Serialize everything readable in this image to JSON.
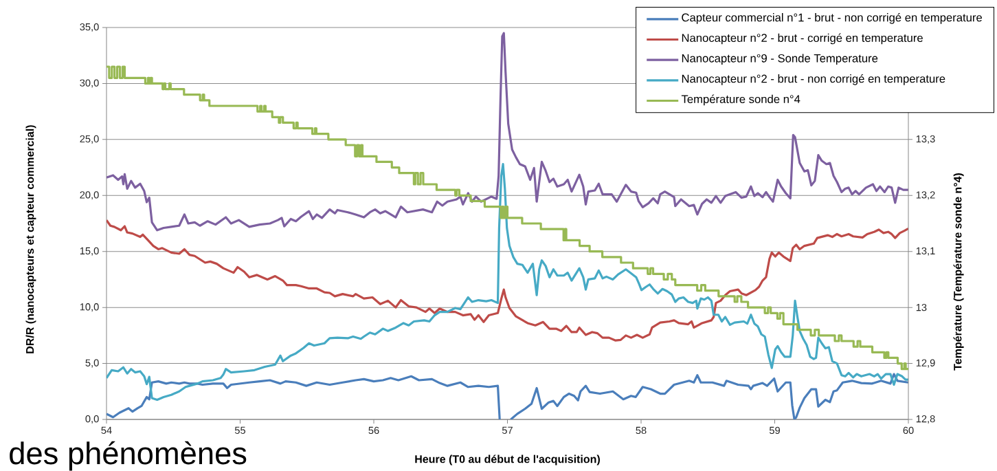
{
  "chart_data": {
    "type": "line",
    "xlabel": "Heure (T0 au début de l'acquisition)",
    "ylabel": "DR/R  (nanocapteurs et capteur commercial)",
    "y2label": "Température (Température sonde n°4)",
    "annotations": [
      "des phénomènes"
    ],
    "xlim": [
      54,
      60
    ],
    "xticks": [
      54,
      55,
      56,
      57,
      58,
      59,
      60
    ],
    "ylim": [
      0,
      35
    ],
    "yticks": [
      {
        "value": 0,
        "label": "0,0"
      },
      {
        "value": 5,
        "label": "5,0"
      },
      {
        "value": 10,
        "label": "10,0"
      },
      {
        "value": 15,
        "label": "15,0"
      },
      {
        "value": 20,
        "label": "20,0"
      },
      {
        "value": 25,
        "label": "25,0"
      },
      {
        "value": 30,
        "label": "30,0"
      },
      {
        "value": 35,
        "label": "35,0"
      }
    ],
    "y2lim": [
      12.8,
      13.5
    ],
    "y2ticks": [
      {
        "value": 12.8,
        "label": "12,8"
      },
      {
        "value": 12.9,
        "label": "12,9"
      },
      13,
      {
        "value": 13.1,
        "label": "13,1"
      },
      {
        "value": 13.2,
        "label": "13,2"
      },
      {
        "value": 13.3,
        "label": "13,3"
      }
    ],
    "grid": "y",
    "legend": "top right",
    "series": [
      {
        "name": "Capteur commercial n°1 - brut - non corrigé en temperature",
        "color": "#4a7ebb",
        "x": [
          54.0,
          54.049,
          54.097,
          54.165,
          54.194,
          54.233,
          54.262,
          54.301,
          54.32,
          54.34,
          54.388,
          54.447,
          54.485,
          54.544,
          54.583,
          54.621,
          54.68,
          54.718,
          54.796,
          54.874,
          54.903,
          54.932,
          55.068,
          55.146,
          55.223,
          55.301,
          55.34,
          55.417,
          55.495,
          55.573,
          55.67,
          55.767,
          55.864,
          55.926,
          56.0,
          56.068,
          56.126,
          56.184,
          56.28,
          56.338,
          56.435,
          56.493,
          56.551,
          56.648,
          56.706,
          56.783,
          56.861,
          56.928,
          56.942,
          56.98,
          57.025,
          57.074,
          57.132,
          57.18,
          57.219,
          57.257,
          57.306,
          57.344,
          57.373,
          57.422,
          57.46,
          57.499,
          57.528,
          57.547,
          57.586,
          57.615,
          57.692,
          57.789,
          57.867,
          57.925,
          57.96,
          58.012,
          58.073,
          58.143,
          58.178,
          58.247,
          58.36,
          58.395,
          58.421,
          58.447,
          58.534,
          58.621,
          58.639,
          58.726,
          58.804,
          58.822,
          58.839,
          58.909,
          58.943,
          58.996,
          59.022,
          59.083,
          59.117,
          59.131,
          59.147,
          59.161,
          59.187,
          59.222,
          59.274,
          59.309,
          59.326,
          59.379,
          59.413,
          59.44,
          59.466,
          59.509,
          59.579,
          59.648,
          59.727,
          59.796,
          59.866,
          59.892,
          59.918,
          60.0
        ],
        "values": [
          0.5,
          0.2,
          0.6,
          1.0,
          0.7,
          1.0,
          1.2,
          2.0,
          1.8,
          3.3,
          3.4,
          3.2,
          3.3,
          3.2,
          3.3,
          3.2,
          3.2,
          3.1,
          3.2,
          3.2,
          2.8,
          3.1,
          3.3,
          3.4,
          3.5,
          3.2,
          3.4,
          3.3,
          3.0,
          3.3,
          3.1,
          3.3,
          3.5,
          3.6,
          3.4,
          3.5,
          3.7,
          3.5,
          3.85,
          3.5,
          3.6,
          3.25,
          3.0,
          3.3,
          2.9,
          3.0,
          2.9,
          3.0,
          0.0,
          null,
          0.0,
          0.5,
          0.95,
          1.4,
          2.8,
          0.95,
          1.5,
          1.65,
          1.2,
          2.0,
          2.3,
          2.1,
          1.7,
          2.5,
          3.0,
          2.45,
          2.3,
          2.5,
          1.8,
          2.1,
          2.0,
          2.9,
          2.7,
          2.3,
          2.3,
          3.1,
          3.45,
          3.3,
          3.95,
          3.3,
          3.3,
          3.0,
          3.45,
          3.1,
          3.0,
          2.7,
          3.0,
          3.25,
          3.0,
          3.65,
          2.5,
          3.3,
          3.3,
          1.25,
          0.0,
          0.2,
          1.05,
          1.9,
          2.7,
          2.7,
          1.15,
          1.75,
          1.55,
          2.5,
          2.6,
          3.3,
          3.45,
          3.25,
          3.2,
          3.45,
          3.2,
          4.05,
          3.45,
          3.3
        ]
      },
      {
        "name": "Nanocapteur n°2 - brut - corrigé en temperature",
        "color": "#be4b48",
        "x": [
          54.0,
          54.029,
          54.058,
          54.107,
          54.136,
          54.155,
          54.194,
          54.252,
          54.272,
          54.311,
          54.35,
          54.388,
          54.417,
          54.485,
          54.544,
          54.583,
          54.621,
          54.66,
          54.738,
          54.777,
          54.825,
          54.874,
          54.951,
          54.981,
          55.029,
          55.068,
          55.126,
          55.204,
          55.262,
          55.32,
          55.35,
          55.417,
          55.456,
          55.515,
          55.573,
          55.631,
          55.67,
          55.709,
          55.767,
          55.845,
          55.864,
          55.926,
          55.99,
          56.048,
          56.106,
          56.164,
          56.203,
          56.261,
          56.319,
          56.387,
          56.416,
          56.455,
          56.493,
          56.551,
          56.609,
          56.667,
          56.725,
          56.754,
          56.783,
          56.822,
          56.861,
          56.928,
          56.957,
          56.973,
          56.986,
          57.015,
          57.064,
          57.093,
          57.151,
          57.209,
          57.267,
          57.315,
          57.364,
          57.402,
          57.441,
          57.48,
          57.518,
          57.538,
          57.586,
          57.634,
          57.673,
          57.712,
          57.76,
          57.809,
          57.847,
          57.886,
          57.925,
          57.969,
          58.012,
          58.064,
          58.082,
          58.143,
          58.212,
          58.247,
          58.282,
          58.352,
          58.378,
          58.395,
          58.456,
          58.526,
          58.543,
          58.56,
          58.595,
          58.63,
          58.665,
          58.726,
          58.752,
          58.787,
          58.856,
          58.883,
          58.909,
          58.935,
          58.961,
          58.978,
          59.004,
          59.03,
          59.065,
          59.117,
          59.135,
          59.161,
          59.187,
          59.222,
          59.292,
          59.318,
          59.396,
          59.431,
          59.466,
          59.5,
          59.553,
          59.587,
          59.657,
          59.692,
          59.744,
          59.779,
          59.814,
          59.849,
          59.875,
          59.901,
          59.936,
          59.97,
          60.0
        ],
        "values": [
          17.8,
          17.3,
          17.2,
          16.9,
          17.25,
          16.7,
          16.6,
          16.3,
          16.5,
          16.0,
          15.5,
          15.2,
          15.3,
          14.9,
          14.8,
          15.2,
          14.7,
          14.6,
          14.0,
          14.1,
          13.9,
          13.5,
          13.1,
          13.6,
          13.2,
          12.7,
          12.9,
          12.5,
          12.8,
          12.4,
          12.0,
          12.0,
          11.9,
          11.7,
          11.7,
          11.35,
          11.3,
          11.0,
          11.2,
          11.0,
          11.2,
          10.8,
          10.9,
          10.3,
          10.6,
          10.0,
          10.65,
          10.1,
          10.0,
          9.6,
          9.9,
          9.5,
          9.9,
          9.6,
          9.6,
          9.3,
          9.4,
          8.9,
          9.3,
          8.7,
          9.3,
          9.5,
          10.9,
          11.6,
          10.9,
          9.95,
          9.2,
          9.0,
          8.6,
          8.4,
          8.7,
          8.1,
          8.1,
          7.9,
          8.35,
          7.8,
          7.8,
          8.2,
          7.55,
          7.8,
          7.7,
          7.3,
          7.3,
          7.05,
          7.1,
          7.5,
          7.3,
          7.55,
          7.3,
          7.6,
          8.2,
          8.65,
          8.75,
          8.85,
          8.6,
          8.5,
          8.75,
          8.2,
          8.6,
          8.85,
          9.15,
          10.4,
          10.6,
          11.1,
          11.45,
          11.6,
          11.25,
          11.1,
          11.55,
          11.85,
          12.4,
          12.7,
          14.35,
          14.9,
          14.55,
          14.9,
          14.55,
          14.15,
          15.3,
          15.6,
          15.2,
          15.5,
          15.7,
          16.2,
          16.45,
          16.3,
          16.55,
          16.35,
          16.55,
          16.35,
          16.25,
          16.55,
          16.75,
          16.95,
          16.65,
          16.75,
          16.55,
          16.2,
          16.65,
          16.85,
          17.05
        ]
      },
      {
        "name": "Nanocapteur n°9 - Sonde Temperature",
        "color": "#7d60a0",
        "x": [
          54.0,
          54.049,
          54.087,
          54.117,
          54.126,
          54.136,
          54.155,
          54.184,
          54.214,
          54.252,
          54.282,
          54.301,
          54.32,
          54.34,
          54.379,
          54.427,
          54.485,
          54.544,
          54.583,
          54.612,
          54.66,
          54.699,
          54.757,
          54.816,
          54.893,
          54.932,
          54.99,
          55.068,
          55.146,
          55.223,
          55.282,
          55.311,
          55.33,
          55.379,
          55.417,
          55.456,
          55.515,
          55.544,
          55.573,
          55.612,
          55.67,
          55.709,
          55.728,
          55.806,
          55.864,
          55.926,
          55.971,
          56.01,
          56.048,
          56.087,
          56.164,
          56.203,
          56.251,
          56.368,
          56.435,
          56.474,
          56.513,
          56.551,
          56.619,
          56.648,
          56.667,
          56.706,
          56.735,
          56.764,
          56.803,
          56.88,
          56.919,
          56.934,
          56.948,
          56.961,
          56.973,
          56.986,
          57.006,
          57.035,
          57.064,
          57.093,
          57.132,
          57.17,
          57.199,
          57.219,
          57.257,
          57.286,
          57.315,
          57.344,
          57.373,
          57.422,
          57.451,
          57.48,
          57.538,
          57.567,
          57.586,
          57.605,
          57.654,
          57.683,
          57.712,
          57.78,
          57.818,
          57.886,
          57.925,
          57.963,
          57.981,
          58.012,
          58.056,
          58.091,
          58.125,
          58.143,
          58.178,
          58.247,
          58.256,
          58.299,
          58.36,
          58.395,
          58.421,
          58.456,
          58.491,
          58.526,
          58.56,
          58.595,
          58.63,
          58.708,
          58.752,
          58.787,
          58.822,
          58.848,
          58.874,
          58.909,
          58.935,
          58.961,
          58.987,
          59.022,
          59.048,
          59.083,
          59.117,
          59.138,
          59.152,
          59.187,
          59.222,
          59.248,
          59.274,
          59.3,
          59.326,
          59.352,
          59.387,
          59.413,
          59.44,
          59.466,
          59.5,
          59.527,
          59.553,
          59.579,
          59.605,
          59.631,
          59.683,
          59.735,
          59.761,
          59.788,
          59.822,
          59.849,
          59.875,
          59.901,
          59.927,
          59.962,
          60.0
        ],
        "values": [
          21.6,
          21.8,
          21.4,
          21.7,
          21.0,
          21.9,
          20.6,
          21.3,
          20.7,
          21.05,
          20.4,
          19.4,
          19.8,
          17.6,
          16.9,
          17.1,
          17.2,
          17.3,
          18.3,
          17.5,
          17.6,
          17.3,
          17.7,
          17.4,
          18.05,
          17.5,
          17.8,
          17.2,
          17.4,
          17.5,
          17.8,
          18.0,
          17.25,
          17.9,
          17.7,
          18.1,
          18.6,
          17.9,
          18.3,
          18.0,
          18.75,
          18.4,
          18.7,
          18.5,
          18.3,
          18.05,
          18.5,
          18.75,
          18.4,
          18.6,
          18.05,
          19.0,
          18.5,
          18.75,
          18.5,
          19.45,
          19.1,
          19.45,
          19.65,
          19.9,
          19.2,
          20.2,
          19.45,
          19.9,
          19.45,
          19.9,
          19.7,
          21.75,
          28.6,
          34.2,
          34.5,
          31.0,
          26.4,
          24.1,
          23.4,
          22.8,
          22.6,
          21.4,
          22.45,
          19.45,
          23.0,
          22.2,
          21.2,
          21.5,
          20.8,
          21.0,
          21.4,
          20.35,
          21.85,
          20.8,
          19.2,
          20.35,
          20.45,
          21.05,
          20.1,
          20.1,
          19.45,
          20.95,
          20.35,
          20.25,
          19.5,
          18.95,
          19.3,
          19.75,
          19.3,
          20.1,
          20.35,
          19.85,
          19.05,
          19.65,
          19.05,
          19.15,
          18.3,
          19.25,
          19.65,
          19.35,
          19.95,
          19.35,
          19.95,
          20.3,
          19.8,
          19.9,
          20.8,
          19.95,
          20.2,
          19.85,
          20.3,
          19.85,
          19.45,
          21.4,
          20.8,
          20.2,
          19.75,
          25.4,
          25.2,
          22.9,
          22.15,
          22.25,
          20.9,
          21.3,
          23.6,
          23.1,
          22.8,
          22.9,
          21.75,
          21.2,
          20.3,
          20.6,
          20.7,
          20.1,
          20.4,
          20.1,
          20.7,
          21.0,
          20.4,
          20.8,
          20.3,
          20.8,
          20.7,
          19.35,
          20.7,
          20.5,
          20.5
        ]
      },
      {
        "name": "Nanocapteur n°2 - brut - non corrigé en temperature",
        "color": "#46aac5",
        "x": [
          54.0,
          54.039,
          54.087,
          54.126,
          54.155,
          54.184,
          54.214,
          54.252,
          54.282,
          54.301,
          54.32,
          54.34,
          54.379,
          54.427,
          54.485,
          54.544,
          54.592,
          54.621,
          54.68,
          54.718,
          54.796,
          54.854,
          54.874,
          54.893,
          54.932,
          55.029,
          55.107,
          55.184,
          55.262,
          55.301,
          55.32,
          55.379,
          55.417,
          55.476,
          55.515,
          55.553,
          55.631,
          55.67,
          55.728,
          55.806,
          55.845,
          55.903,
          55.926,
          55.971,
          56.01,
          56.068,
          56.106,
          56.164,
          56.222,
          56.261,
          56.3,
          56.377,
          56.416,
          56.455,
          56.493,
          56.551,
          56.609,
          56.648,
          56.706,
          56.735,
          56.783,
          56.841,
          56.88,
          56.928,
          56.938,
          56.954,
          56.967,
          56.981,
          56.996,
          57.015,
          57.044,
          57.074,
          57.112,
          57.151,
          57.19,
          57.219,
          57.238,
          57.257,
          57.286,
          57.315,
          57.344,
          57.373,
          57.422,
          57.451,
          57.48,
          57.509,
          57.538,
          57.567,
          57.586,
          57.605,
          57.654,
          57.683,
          57.712,
          57.741,
          57.789,
          57.828,
          57.886,
          57.925,
          57.963,
          57.985,
          58.003,
          58.038,
          58.064,
          58.091,
          58.125,
          58.16,
          58.195,
          58.23,
          58.256,
          58.282,
          58.317,
          58.352,
          58.386,
          58.413,
          58.421,
          58.447,
          58.473,
          58.5,
          58.526,
          58.543,
          58.578,
          58.604,
          58.63,
          58.665,
          58.7,
          58.769,
          58.795,
          58.822,
          58.848,
          58.874,
          58.9,
          58.926,
          58.952,
          58.978,
          59.004,
          59.022,
          59.048,
          59.074,
          59.117,
          59.135,
          59.152,
          59.17,
          59.187,
          59.213,
          59.239,
          59.265,
          59.292,
          59.309,
          59.326,
          59.352,
          59.379,
          59.405,
          59.431,
          59.466,
          59.5,
          59.527,
          59.553,
          59.587,
          59.614,
          59.648,
          59.709,
          59.744,
          59.77,
          59.796,
          59.831,
          59.866,
          59.892,
          59.918,
          59.953,
          59.979,
          60.0
        ],
        "values": [
          3.7,
          4.4,
          4.3,
          4.65,
          4.1,
          4.5,
          4.2,
          4.3,
          3.85,
          3.15,
          3.8,
          1.9,
          1.75,
          2.0,
          2.2,
          2.5,
          2.9,
          3.0,
          3.2,
          3.4,
          3.5,
          3.7,
          4.0,
          4.5,
          4.2,
          4.3,
          4.4,
          4.7,
          4.9,
          5.7,
          5.2,
          5.7,
          5.9,
          6.4,
          6.8,
          6.6,
          6.8,
          7.25,
          7.3,
          7.25,
          7.4,
          7.2,
          7.4,
          7.75,
          7.6,
          8.1,
          7.9,
          8.2,
          8.6,
          8.4,
          8.75,
          8.85,
          8.75,
          9.3,
          9.6,
          9.6,
          9.95,
          9.85,
          10.9,
          10.5,
          10.65,
          10.55,
          10.65,
          10.4,
          17.1,
          21.75,
          22.8,
          20.6,
          17.1,
          15.5,
          14.5,
          13.9,
          13.8,
          13.1,
          13.9,
          11.1,
          13.4,
          14.2,
          13.7,
          12.7,
          13.4,
          12.85,
          12.85,
          13.1,
          12.4,
          12.95,
          13.5,
          12.7,
          11.6,
          12.5,
          12.6,
          13.3,
          12.6,
          12.75,
          12.5,
          12.95,
          13.4,
          13.05,
          12.7,
          12.1,
          11.55,
          11.85,
          12.05,
          11.65,
          11.25,
          11.65,
          11.45,
          11.15,
          10.5,
          10.8,
          10.9,
          10.5,
          10.4,
          10.6,
          9.9,
          10.8,
          10.7,
          10.9,
          10.6,
          9.35,
          9.35,
          8.75,
          9.15,
          8.45,
          8.65,
          8.75,
          8.55,
          9.35,
          8.55,
          8.3,
          7.6,
          7.4,
          5.8,
          4.6,
          6.25,
          6.55,
          6.0,
          5.6,
          5.6,
          7.5,
          10.6,
          9.15,
          7.9,
          7.2,
          6.65,
          5.6,
          5.4,
          5.5,
          7.3,
          6.8,
          6.35,
          6.45,
          5.2,
          5.0,
          3.95,
          3.85,
          4.15,
          3.75,
          4.05,
          3.85,
          4.05,
          3.85,
          4.05,
          3.65,
          4.05,
          4.05,
          3.1,
          4.05,
          3.85,
          3.55,
          3.55
        ]
      },
      {
        "name": "Température sonde n°4",
        "color": "#98b954",
        "type": "step",
        "axis": "y2",
        "x": [
          54.0,
          54.02,
          54.04,
          54.06,
          54.08,
          54.1,
          54.12,
          54.136,
          54.29,
          54.31,
          54.32,
          54.33,
          54.34,
          54.42,
          54.43,
          54.44,
          54.47,
          54.48,
          54.58,
          54.7,
          54.72,
          54.73,
          54.77,
          55.13,
          55.15,
          55.16,
          55.18,
          55.19,
          55.24,
          55.29,
          55.3,
          55.32,
          55.4,
          55.42,
          55.43,
          55.54,
          55.56,
          55.57,
          55.66,
          55.79,
          55.86,
          55.875,
          55.89,
          55.905,
          55.915,
          56.02,
          56.135,
          56.19,
          56.3,
          56.31,
          56.33,
          56.35,
          56.37,
          56.47,
          56.61,
          56.62,
          56.64,
          56.725,
          56.83,
          56.95,
          56.96,
          56.97,
          56.985,
          57.0,
          57.11,
          57.25,
          57.42,
          57.43,
          57.44,
          57.54,
          57.615,
          57.71,
          57.85,
          57.94,
          58.05,
          58.07,
          58.09,
          58.17,
          58.2,
          58.23,
          58.256,
          58.42,
          58.45,
          58.48,
          58.58,
          58.7,
          58.72,
          58.75,
          58.8,
          58.926,
          58.95,
          58.97,
          59.02,
          59.04,
          59.065,
          59.17,
          59.27,
          59.3,
          59.33,
          59.45,
          59.48,
          59.5,
          59.59,
          59.62,
          59.64,
          59.73,
          59.82,
          59.835,
          59.85,
          59.92,
          59.95,
          59.97,
          59.98,
          60.0
        ],
        "values": [
          13.43,
          13.41,
          13.43,
          13.41,
          13.43,
          13.41,
          13.43,
          13.41,
          13.4,
          13.41,
          13.4,
          13.41,
          13.4,
          13.39,
          13.4,
          13.39,
          13.4,
          13.39,
          13.38,
          13.37,
          13.38,
          13.37,
          13.36,
          13.35,
          13.36,
          13.35,
          13.36,
          13.35,
          13.34,
          13.33,
          13.34,
          13.33,
          13.32,
          13.33,
          13.32,
          13.31,
          13.32,
          13.31,
          13.3,
          13.29,
          13.27,
          13.29,
          13.27,
          13.29,
          13.27,
          13.26,
          13.25,
          13.24,
          13.22,
          13.24,
          13.22,
          13.24,
          13.22,
          13.21,
          13.2,
          13.21,
          13.2,
          13.19,
          13.18,
          13.16,
          13.18,
          13.16,
          13.18,
          13.16,
          13.15,
          13.14,
          13.12,
          13.14,
          13.12,
          13.11,
          13.1,
          13.09,
          13.08,
          13.07,
          13.06,
          13.07,
          13.06,
          13.05,
          13.06,
          13.05,
          13.04,
          13.03,
          13.04,
          13.03,
          13.02,
          13.01,
          13.02,
          13.01,
          13.0,
          12.99,
          13.0,
          12.99,
          12.98,
          12.99,
          12.97,
          12.96,
          12.95,
          12.96,
          12.95,
          12.94,
          12.95,
          12.94,
          12.93,
          12.94,
          12.93,
          12.92,
          12.91,
          12.92,
          12.91,
          12.9,
          12.89,
          12.9,
          12.89,
          12.89
        ]
      }
    ]
  }
}
